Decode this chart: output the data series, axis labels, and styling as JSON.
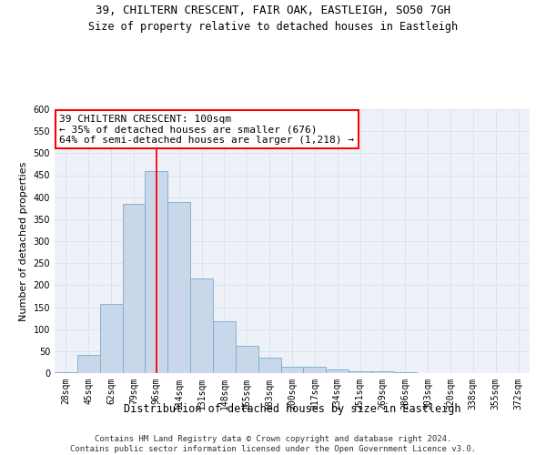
{
  "title_line1": "39, CHILTERN CRESCENT, FAIR OAK, EASTLEIGH, SO50 7GH",
  "title_line2": "Size of property relative to detached houses in Eastleigh",
  "xlabel": "Distribution of detached houses by size in Eastleigh",
  "ylabel": "Number of detached properties",
  "bar_color": "#c8d8ea",
  "bar_edge_color": "#7aaac8",
  "categories": [
    "28sqm",
    "45sqm",
    "62sqm",
    "79sqm",
    "96sqm",
    "114sqm",
    "131sqm",
    "148sqm",
    "165sqm",
    "183sqm",
    "200sqm",
    "217sqm",
    "234sqm",
    "251sqm",
    "269sqm",
    "286sqm",
    "303sqm",
    "320sqm",
    "338sqm",
    "355sqm",
    "372sqm"
  ],
  "values": [
    3,
    42,
    158,
    385,
    460,
    390,
    215,
    118,
    62,
    35,
    14,
    14,
    9,
    5,
    4,
    2,
    1,
    0,
    0,
    0,
    0
  ],
  "vline_x": 4,
  "annotation_text": "39 CHILTERN CRESCENT: 100sqm\n← 35% of detached houses are smaller (676)\n64% of semi-detached houses are larger (1,218) →",
  "annotation_box_color": "white",
  "annotation_box_edge_color": "red",
  "vline_color": "red",
  "grid_color": "#d8e4f0",
  "background_color": "#eef2f8",
  "ylim": [
    0,
    600
  ],
  "yticks": [
    0,
    50,
    100,
    150,
    200,
    250,
    300,
    350,
    400,
    450,
    500,
    550,
    600
  ],
  "footer_text": "Contains HM Land Registry data © Crown copyright and database right 2024.\nContains public sector information licensed under the Open Government Licence v3.0.",
  "title_fontsize": 9,
  "subtitle_fontsize": 8.5,
  "tick_fontsize": 7,
  "ylabel_fontsize": 8,
  "xlabel_fontsize": 8.5,
  "annotation_fontsize": 8,
  "footer_fontsize": 6.5
}
